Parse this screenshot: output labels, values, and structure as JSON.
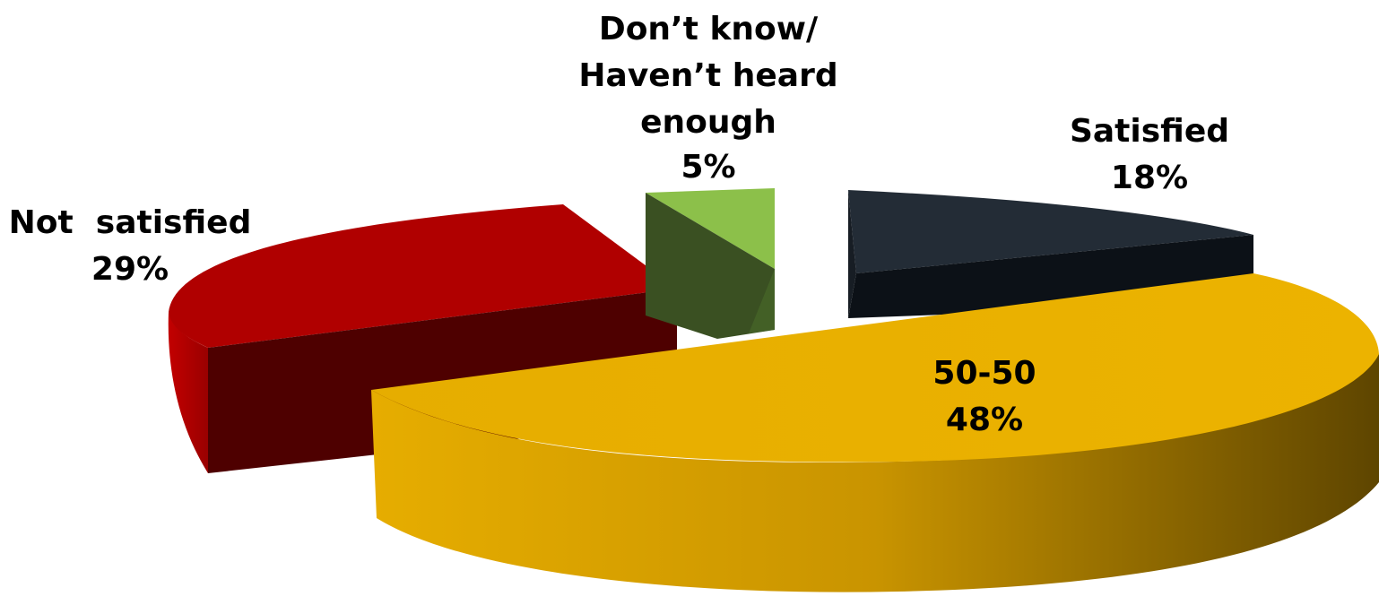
{
  "chart_data": {
    "type": "pie",
    "title": "",
    "style": "3d-exploded",
    "slices": [
      {
        "key": "satisfied",
        "label": "Satisfied",
        "value": 18,
        "value_label": "18%",
        "color": "#1f2630"
      },
      {
        "key": "fifty",
        "label": "50-50",
        "value": 48,
        "value_label": "48%",
        "color": "#e8b000"
      },
      {
        "key": "not_satisfied",
        "label": "Not  satisfied",
        "value": 29,
        "value_label": "29%",
        "color": "#b00000"
      },
      {
        "key": "dont_know",
        "label": "Don’t know/ Haven’t heard enough",
        "label_lines": [
          "Don’t know/",
          "Haven’t heard",
          "enough"
        ],
        "value": 5,
        "value_label": "5%",
        "color": "#8cc04a"
      }
    ]
  }
}
